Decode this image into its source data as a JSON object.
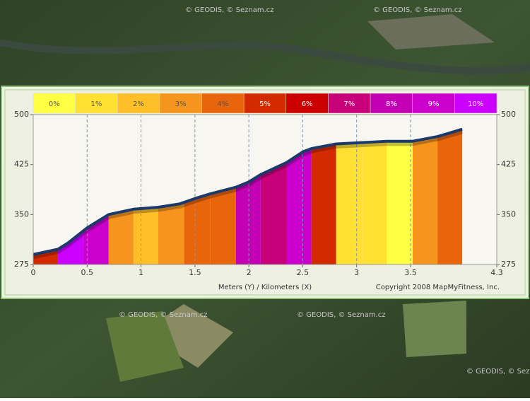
{
  "chart_data": {
    "type": "area",
    "legend": {
      "labels": [
        "0%",
        "1%",
        "2%",
        "3%",
        "4%",
        "5%",
        "6%",
        "7%",
        "8%",
        "9%",
        "10%"
      ],
      "colors": [
        "#ffff44",
        "#ffe033",
        "#ffbf28",
        "#f7941d",
        "#e8650c",
        "#d42a00",
        "#cc0000",
        "#c8007a",
        "#c400b4",
        "#cc00cc",
        "#cc00ff"
      ]
    },
    "x": [
      0,
      0.23,
      0.32,
      0.5,
      0.7,
      0.93,
      1.16,
      1.36,
      1.5,
      1.64,
      1.88,
      2.0,
      2.11,
      2.35,
      2.5,
      2.58,
      2.81,
      3.05,
      3.28,
      3.52,
      3.75,
      3.98
    ],
    "values": [
      290,
      298,
      307,
      330,
      350,
      358,
      361,
      366,
      374,
      381,
      391,
      399,
      410,
      428,
      444,
      449,
      456,
      458,
      460,
      460,
      467,
      478
    ],
    "segment_edges": [
      0,
      0.23,
      0.46,
      0.7,
      0.93,
      1.16,
      1.4,
      1.64,
      1.88,
      2.11,
      2.35,
      2.58,
      2.81,
      3.05,
      3.28,
      3.52,
      3.75,
      3.98
    ],
    "segment_grades": [
      5,
      10,
      9,
      3,
      2,
      3,
      4,
      4,
      8,
      7,
      9,
      5,
      1,
      1,
      0,
      3,
      4
    ],
    "line_color": "#1b3a6b",
    "xlim": [
      0,
      4.3
    ],
    "xticks": [
      0,
      0.5,
      1,
      1.5,
      2,
      2.5,
      3,
      3.5,
      4.3
    ],
    "ylim": [
      275,
      500
    ],
    "yticks": [
      275,
      350,
      425,
      500
    ],
    "grid": true,
    "axis_label": "Meters (Y) / Kilometers (X)",
    "copyright": "Copyright 2008 MapMyFitness, Inc."
  },
  "map": {
    "attributions": [
      "© GEODIS, © Seznam.cz",
      "© GEODIS, © Seznam.cz",
      "© GEODIS, © Seznam.cz",
      "© GEODIS, © Seznam.cz",
      "© GEODIS, © Seznam.cz"
    ]
  }
}
